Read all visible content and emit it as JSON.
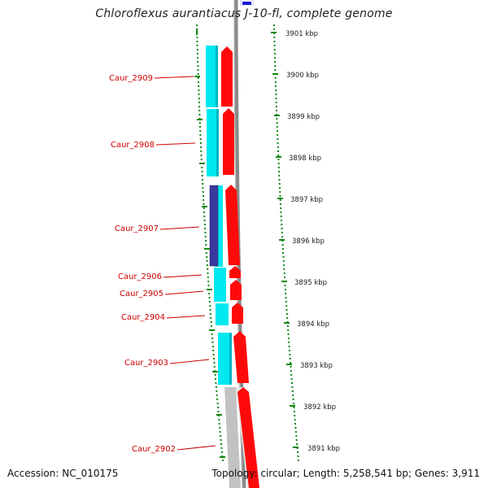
{
  "title": "Chloroflexus aurantiacus J-10-fl, complete genome",
  "footer": {
    "accession": "Accession: NC_010175",
    "topology": "Topology: circular; Length: 5,258,541 bp; Genes: 3,911"
  },
  "colors": {
    "forward_gene": "#ff0000",
    "reverse_gene": "#00ffff",
    "gene_label": "#cc0000",
    "tick": "#118811",
    "backbone": "#888888",
    "highlight": "#3a3a9e"
  },
  "scale": {
    "unit": "kbp",
    "ticks": [
      "3901 kbp",
      "3900 kbp",
      "3899 kbp",
      "3898 kbp",
      "3897 kbp",
      "3896 kbp",
      "3895 kbp",
      "3894 kbp",
      "3893 kbp",
      "3892 kbp",
      "3891 kbp"
    ]
  },
  "genes": [
    "Caur_2909",
    "Caur_2908",
    "Caur_2907",
    "Caur_2906",
    "Caur_2905",
    "Caur_2904",
    "Caur_2903",
    "Caur_2902"
  ]
}
